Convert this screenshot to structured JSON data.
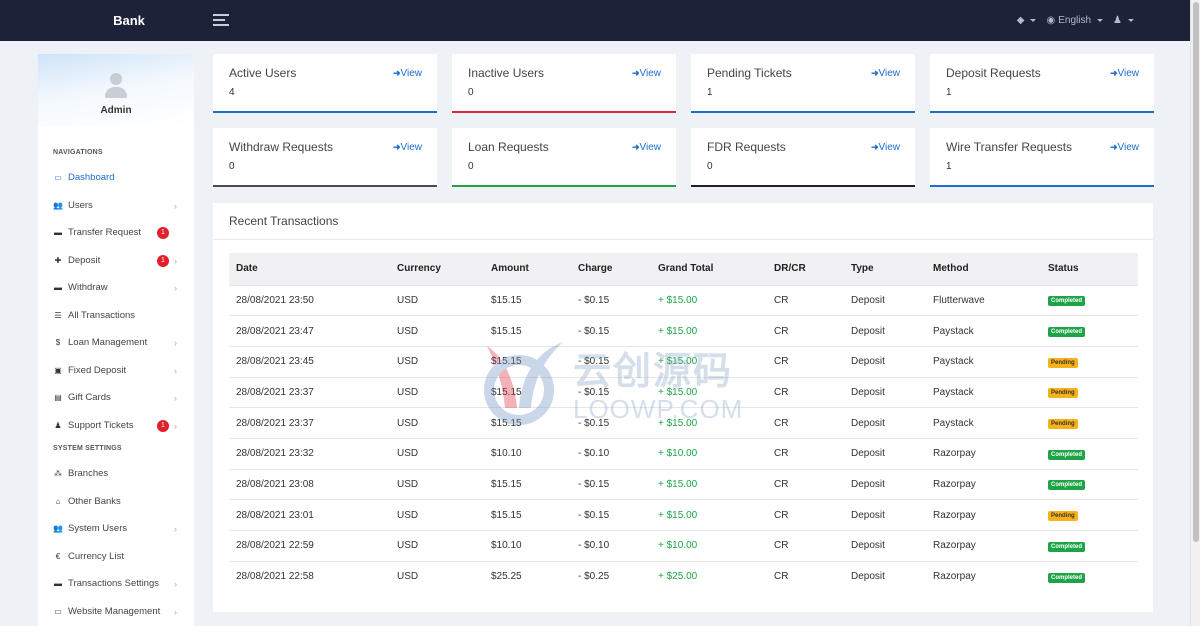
{
  "brand": "Bank",
  "topnav": {
    "language": "English"
  },
  "profile": {
    "name": "Admin"
  },
  "sidebar": {
    "section_nav": "NAVIGATIONS",
    "section_settings": "SYSTEM SETTINGS",
    "items": [
      {
        "label": "Dashboard",
        "icon": "dashboard-icon",
        "glyph": "▭",
        "active": true
      },
      {
        "label": "Users",
        "icon": "users-icon",
        "glyph": "👥",
        "chevron": true
      },
      {
        "label": "Transfer Request",
        "icon": "transfer-icon",
        "glyph": "▬",
        "badge": "1"
      },
      {
        "label": "Deposit",
        "icon": "plus-square-icon",
        "glyph": "✚",
        "badge": "1",
        "chevron": true
      },
      {
        "label": "Withdraw",
        "icon": "minus-square-icon",
        "glyph": "▬",
        "chevron": true
      },
      {
        "label": "All Transactions",
        "icon": "list-icon",
        "glyph": "☰"
      },
      {
        "label": "Loan Management",
        "icon": "dollar-icon",
        "glyph": "$",
        "chevron": true
      },
      {
        "label": "Fixed Deposit",
        "icon": "briefcase-icon",
        "glyph": "▣",
        "chevron": true
      },
      {
        "label": "Gift Cards",
        "icon": "gift-icon",
        "glyph": "▤",
        "chevron": true
      },
      {
        "label": "Support Tickets",
        "icon": "ticket-icon",
        "glyph": "♟",
        "badge": "1",
        "chevron": true
      },
      {
        "label": "Branches",
        "icon": "sitemap-icon",
        "glyph": "⁂"
      },
      {
        "label": "Other Banks",
        "icon": "bank-icon",
        "glyph": "⌂"
      },
      {
        "label": "System Users",
        "icon": "users-cog-icon",
        "glyph": "👥",
        "chevron": true
      },
      {
        "label": "Currency List",
        "icon": "euro-icon",
        "glyph": "€"
      },
      {
        "label": "Transactions Settings",
        "icon": "credit-card-icon",
        "glyph": "▬",
        "chevron": true
      },
      {
        "label": "Website Management",
        "icon": "desktop-icon",
        "glyph": "▭",
        "chevron": true
      }
    ]
  },
  "cards": [
    {
      "title": "Active Users",
      "count": "4",
      "view": "View",
      "color": "#1b6fd0"
    },
    {
      "title": "Inactive Users",
      "count": "0",
      "view": "View",
      "color": "#d9263b"
    },
    {
      "title": "Pending Tickets",
      "count": "1",
      "view": "View",
      "color": "#1b6fd0"
    },
    {
      "title": "Deposit Requests",
      "count": "1",
      "view": "View",
      "color": "#1b6fd0"
    },
    {
      "title": "Withdraw Requests",
      "count": "0",
      "view": "View",
      "color": "#4a4a4a"
    },
    {
      "title": "Loan Requests",
      "count": "0",
      "view": "View",
      "color": "#1ea446"
    },
    {
      "title": "FDR Requests",
      "count": "0",
      "view": "View",
      "color": "#222222"
    },
    {
      "title": "Wire Transfer Requests",
      "count": "1",
      "view": "View",
      "color": "#1b6fd0"
    }
  ],
  "transactions": {
    "title": "Recent Transactions",
    "columns": [
      "Date",
      "Currency",
      "Amount",
      "Charge",
      "Grand Total",
      "DR/CR",
      "Type",
      "Method",
      "Status"
    ],
    "rows": [
      [
        "28/08/2021 23:50",
        "USD",
        "$15.15",
        "- $0.15",
        "+ $15.00",
        "CR",
        "Deposit",
        "Flutterwave",
        "Completed"
      ],
      [
        "28/08/2021 23:47",
        "USD",
        "$15.15",
        "- $0.15",
        "+ $15.00",
        "CR",
        "Deposit",
        "Paystack",
        "Completed"
      ],
      [
        "28/08/2021 23:45",
        "USD",
        "$15.15",
        "- $0.15",
        "+ $15.00",
        "CR",
        "Deposit",
        "Paystack",
        "Pending"
      ],
      [
        "28/08/2021 23:37",
        "USD",
        "$15.15",
        "- $0.15",
        "+ $15.00",
        "CR",
        "Deposit",
        "Paystack",
        "Pending"
      ],
      [
        "28/08/2021 23:37",
        "USD",
        "$15.15",
        "- $0.15",
        "+ $15.00",
        "CR",
        "Deposit",
        "Paystack",
        "Pending"
      ],
      [
        "28/08/2021 23:32",
        "USD",
        "$10.10",
        "- $0.10",
        "+ $10.00",
        "CR",
        "Deposit",
        "Razorpay",
        "Completed"
      ],
      [
        "28/08/2021 23:08",
        "USD",
        "$15.15",
        "- $0.15",
        "+ $15.00",
        "CR",
        "Deposit",
        "Razorpay",
        "Completed"
      ],
      [
        "28/08/2021 23:01",
        "USD",
        "$15.15",
        "- $0.15",
        "+ $15.00",
        "CR",
        "Deposit",
        "Razorpay",
        "Pending"
      ],
      [
        "28/08/2021 22:59",
        "USD",
        "$10.10",
        "- $0.10",
        "+ $10.00",
        "CR",
        "Deposit",
        "Razorpay",
        "Completed"
      ],
      [
        "28/08/2021 22:58",
        "USD",
        "$25.25",
        "- $0.25",
        "+ $25.00",
        "CR",
        "Deposit",
        "Razorpay",
        "Completed"
      ]
    ]
  },
  "watermark": {
    "cn": "云创源码",
    "en": "LOOWP.COM"
  }
}
